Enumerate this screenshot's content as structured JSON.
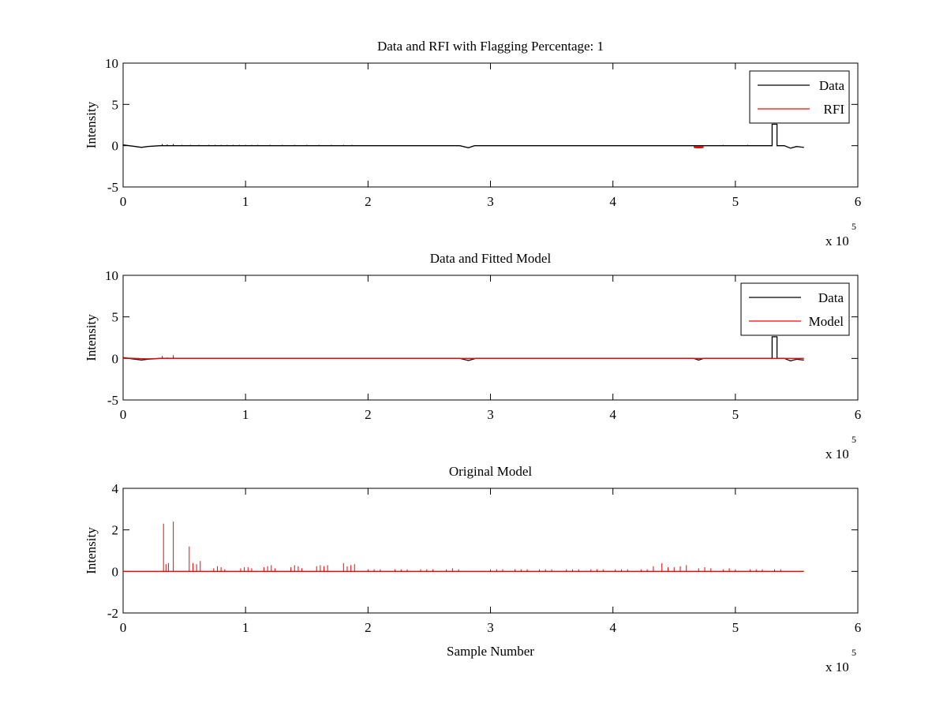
{
  "chart_data": [
    {
      "type": "line",
      "title": "Data and RFI with Flagging Percentage: 1",
      "xlabel": "",
      "ylabel": "Intensity",
      "xlim": [
        0,
        600000
      ],
      "ylim": [
        -5,
        10
      ],
      "xticks": [
        0,
        1,
        2,
        3,
        4,
        5,
        6
      ],
      "yticks": [
        -5,
        0,
        5,
        10
      ],
      "x_exponent_label": "x 10",
      "x_exponent": "5",
      "legend_position": "top-right",
      "series": [
        {
          "name": "Data",
          "color": "#000000",
          "x": [
            0,
            5000,
            10000,
            15000,
            20000,
            30000,
            60000,
            100000,
            150000,
            200000,
            250000,
            275000,
            282000,
            287000,
            295000,
            320000,
            400000,
            450000,
            500000,
            526000,
            530000,
            530000,
            534000,
            534000,
            540000,
            545000,
            550000,
            556000
          ],
          "y": [
            0.1,
            0.0,
            -0.1,
            -0.2,
            -0.1,
            0.0,
            0.0,
            0.0,
            0.0,
            0.0,
            0.0,
            0.0,
            -0.25,
            0.0,
            0.0,
            0.0,
            0.0,
            0.0,
            0.0,
            0.0,
            0.0,
            2.6,
            2.6,
            0.0,
            0.0,
            -0.3,
            -0.1,
            -0.2
          ],
          "spikes_x": [
            32000,
            36000,
            41000,
            48000,
            55000,
            62000,
            70000,
            75000,
            80000,
            85000,
            90000,
            95000,
            100000,
            105000,
            110000,
            120000,
            130000,
            140000,
            150000,
            160000,
            170000,
            180000,
            187000,
            195000,
            225000,
            270000,
            320000,
            400000,
            430000,
            450000,
            470000,
            490000,
            510000
          ],
          "spikes_y": [
            0.2,
            0.15,
            0.2,
            0.1,
            0.1,
            0.1,
            0.1,
            0.1,
            0.1,
            0.1,
            0.1,
            0.1,
            0.1,
            0.1,
            0.1,
            0.1,
            0.1,
            0.1,
            0.1,
            0.1,
            0.1,
            0.1,
            0.1,
            0.05,
            0.05,
            0.05,
            0.05,
            0.05,
            0.05,
            0.05,
            0.05,
            0.1,
            0.1
          ]
        },
        {
          "name": "RFI",
          "color": "#ff0000",
          "x": [
            466000,
            468000,
            472000,
            474000
          ],
          "y": [
            -0.15,
            -0.2,
            -0.2,
            -0.15
          ]
        }
      ]
    },
    {
      "type": "line",
      "title": "Data and Fitted Model",
      "xlabel": "",
      "ylabel": "Intensity",
      "xlim": [
        0,
        600000
      ],
      "ylim": [
        -5,
        10
      ],
      "xticks": [
        0,
        1,
        2,
        3,
        4,
        5,
        6
      ],
      "yticks": [
        -5,
        0,
        5,
        10
      ],
      "x_exponent_label": "x 10",
      "x_exponent": "5",
      "legend_position": "top-right",
      "series": [
        {
          "name": "Data",
          "color": "#000000",
          "x": [
            0,
            5000,
            10000,
            15000,
            20000,
            30000,
            100000,
            200000,
            275000,
            282000,
            288000,
            300000,
            400000,
            466000,
            470000,
            474000,
            500000,
            526000,
            530000,
            530000,
            534000,
            534000,
            540000,
            545000,
            550000,
            556000
          ],
          "y": [
            0.1,
            0.0,
            -0.1,
            -0.2,
            -0.1,
            0.0,
            0.0,
            0.0,
            0.0,
            -0.25,
            0.0,
            0.0,
            0.0,
            0.0,
            -0.2,
            0.0,
            0.0,
            0.0,
            0.0,
            2.6,
            2.6,
            0.0,
            0.0,
            -0.3,
            -0.1,
            -0.2
          ],
          "spikes_x": [
            32000,
            36000,
            41000,
            100000,
            270000,
            320000,
            350000,
            400000,
            450000,
            510000
          ],
          "spikes_y": [
            0.15,
            0.1,
            0.2,
            0.05,
            0.05,
            0.05,
            0.05,
            0.05,
            0.05,
            0.05
          ]
        },
        {
          "name": "Model",
          "color": "#ff0000",
          "x": [
            0,
            10000,
            20000,
            30000,
            100000,
            200000,
            300000,
            400000,
            500000,
            556000
          ],
          "y": [
            0.05,
            0.0,
            -0.05,
            0.0,
            0.0,
            0.0,
            0.0,
            0.0,
            0.0,
            0.0
          ],
          "spikes_x": [
            32000,
            41000
          ],
          "spikes_y": [
            0.3,
            0.4
          ]
        }
      ]
    },
    {
      "type": "line",
      "title": "Original Model",
      "xlabel": "Sample Number",
      "ylabel": "Intensity",
      "xlim": [
        0,
        600000
      ],
      "ylim": [
        -2,
        4
      ],
      "xticks": [
        0,
        1,
        2,
        3,
        4,
        5,
        6
      ],
      "yticks": [
        -2,
        0,
        2,
        4
      ],
      "x_exponent_label": "x 10",
      "x_exponent": "5",
      "series": [
        {
          "color": "#ff0000",
          "x": [
            0,
            556000
          ],
          "y": [
            0,
            0
          ],
          "spikes_x": [
            33000,
            35000,
            37000,
            41000,
            54000,
            57000,
            60000,
            63000,
            74000,
            77000,
            80000,
            83000,
            96000,
            99000,
            102000,
            105000,
            115000,
            118000,
            121000,
            124000,
            137000,
            140000,
            143000,
            146000,
            158000,
            161000,
            164000,
            167000,
            180000,
            183000,
            186000,
            189000,
            200000,
            205000,
            210000,
            222000,
            227000,
            232000,
            243000,
            248000,
            253000,
            264000,
            269000,
            274000,
            300000,
            305000,
            310000,
            320000,
            325000,
            330000,
            340000,
            345000,
            350000,
            362000,
            367000,
            372000,
            382000,
            387000,
            392000,
            402000,
            407000,
            412000,
            423000,
            428000,
            433000,
            440000,
            445000,
            450000,
            455000,
            460000,
            470000,
            475000,
            480000,
            490000,
            495000,
            500000,
            512000,
            517000,
            522000,
            532000,
            537000
          ],
          "spikes_y": [
            2.3,
            0.35,
            0.4,
            2.4,
            1.2,
            0.4,
            0.35,
            0.5,
            0.15,
            0.25,
            0.2,
            0.1,
            0.15,
            0.2,
            0.2,
            0.15,
            0.2,
            0.25,
            0.3,
            0.15,
            0.2,
            0.3,
            0.25,
            0.15,
            0.25,
            0.3,
            0.25,
            0.3,
            0.4,
            0.25,
            0.3,
            0.35,
            0.1,
            0.1,
            0.1,
            0.1,
            0.1,
            0.1,
            0.1,
            0.1,
            0.1,
            0.1,
            0.15,
            0.1,
            0.1,
            0.1,
            0.1,
            0.1,
            0.1,
            0.1,
            0.1,
            0.1,
            0.1,
            0.1,
            0.1,
            0.1,
            0.1,
            0.1,
            0.1,
            0.1,
            0.1,
            0.1,
            0.1,
            0.1,
            0.25,
            0.4,
            0.2,
            0.2,
            0.25,
            0.3,
            0.15,
            0.2,
            0.15,
            0.1,
            0.15,
            0.1,
            0.1,
            0.1,
            0.1,
            0.1,
            0.1
          ]
        }
      ]
    }
  ]
}
